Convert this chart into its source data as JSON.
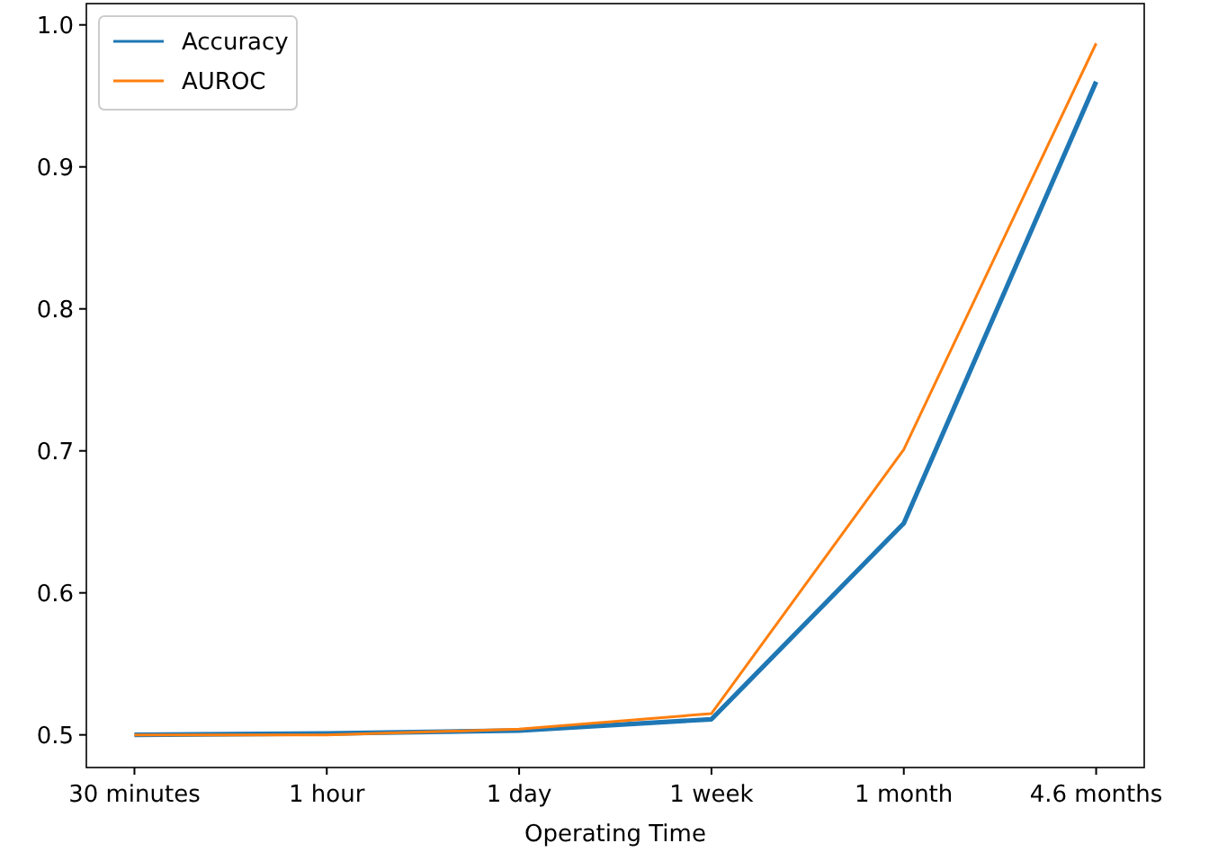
{
  "chart_data": {
    "type": "line",
    "xlabel": "Operating Time",
    "categories": [
      "30 minutes",
      "1 hour",
      "1 day",
      "1 week",
      "1 month",
      "4.6 months"
    ],
    "series": [
      {
        "name": "Accuracy",
        "color": "#1f77b4",
        "values": [
          0.5,
          0.501,
          0.503,
          0.511,
          0.649,
          0.96
        ]
      },
      {
        "name": "AUROC",
        "color": "#ff7f0e",
        "values": [
          0.5,
          0.5,
          0.504,
          0.515,
          0.701,
          0.987
        ]
      }
    ],
    "ylim": [
      0.477,
      1.015
    ],
    "yticks": [
      {
        "value": 0.5,
        "label": "0.5"
      },
      {
        "value": 0.6,
        "label": "0.6"
      },
      {
        "value": 0.7,
        "label": "0.7"
      },
      {
        "value": 0.8,
        "label": "0.8"
      },
      {
        "value": 0.9,
        "label": "0.9"
      },
      {
        "value": 1.0,
        "label": "1.0"
      }
    ],
    "legend": "top left",
    "grid": false,
    "marker": "none",
    "line_style": "solid"
  }
}
